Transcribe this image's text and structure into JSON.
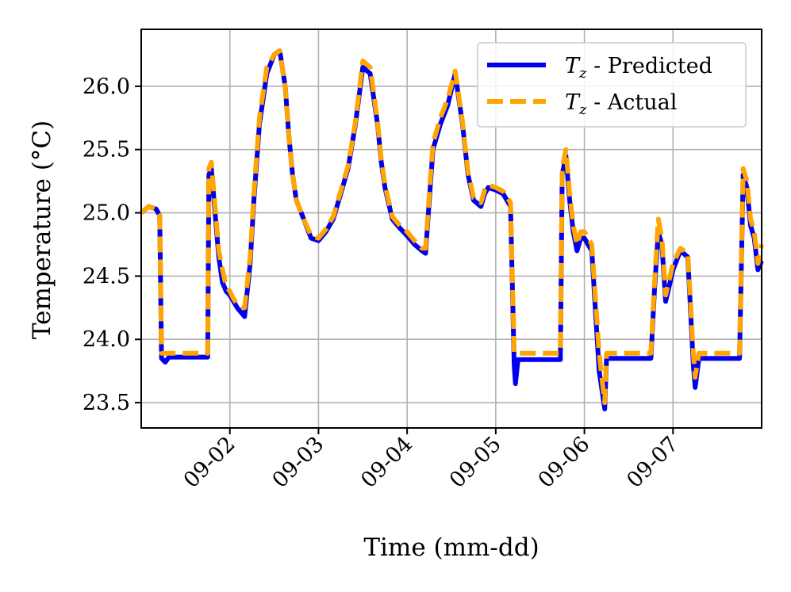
{
  "chart_data": {
    "type": "line",
    "xlabel": "Time (mm-dd)",
    "ylabel": "Temperature (°C)",
    "xlim": [
      "09-01 00:00",
      "09-08 00:00"
    ],
    "ylim": [
      23.3,
      26.45
    ],
    "x_ticks": [
      "09-02",
      "09-03",
      "09-04",
      "09-05",
      "09-06",
      "09-07"
    ],
    "y_ticks": [
      "23.5",
      "24.0",
      "24.5",
      "25.0",
      "25.5",
      "26.0"
    ],
    "grid": true,
    "legend_position": "top-right",
    "x": [
      "09-01 00:00",
      "09-01 02:00",
      "09-01 04:00",
      "09-01 05:00",
      "09-01 05:30",
      "09-01 06:30",
      "09-01 07:30",
      "09-01 09:00",
      "09-01 12:00",
      "09-01 15:00",
      "09-01 18:00",
      "09-01 18:20",
      "09-01 19:00",
      "09-01 20:00",
      "09-01 21:00",
      "09-01 22:00",
      "09-01 23:00",
      "09-02 00:00",
      "09-02 01:00",
      "09-02 02:00",
      "09-02 04:00",
      "09-02 05:30",
      "09-02 06:30",
      "09-02 08:00",
      "09-02 10:00",
      "09-02 12:00",
      "09-02 13:30",
      "09-02 15:00",
      "09-02 16:00",
      "09-02 17:00",
      "09-02 18:00",
      "09-02 20:00",
      "09-02 22:00",
      "09-03 00:00",
      "09-03 02:00",
      "09-03 04:00",
      "09-03 06:00",
      "09-03 08:00",
      "09-03 10:00",
      "09-03 12:00",
      "09-03 14:00",
      "09-03 16:00",
      "09-03 17:00",
      "09-03 18:00",
      "09-03 20:00",
      "09-03 22:00",
      "09-04 00:00",
      "09-04 02:00",
      "09-04 04:00",
      "09-04 05:00",
      "09-04 06:00",
      "09-04 07:00",
      "09-04 09:00",
      "09-04 11:00",
      "09-04 13:00",
      "09-04 15:00",
      "09-04 16:30",
      "09-04 18:00",
      "09-04 20:00",
      "09-04 21:00",
      "09-04 22:00",
      "09-05 00:00",
      "09-05 02:00",
      "09-05 04:00",
      "09-05 05:00",
      "09-05 05:20",
      "09-05 06:00",
      "09-05 07:00",
      "09-05 09:00",
      "09-05 12:00",
      "09-05 15:00",
      "09-05 17:30",
      "09-05 18:00",
      "09-05 19:00",
      "09-05 20:00",
      "09-05 21:00",
      "09-05 22:00",
      "09-05 23:00",
      "09-06 00:00",
      "09-06 01:00",
      "09-06 02:00",
      "09-06 04:00",
      "09-06 05:30",
      "09-06 06:00",
      "09-06 06:30",
      "09-06 07:00",
      "09-06 08:00",
      "09-06 12:00",
      "09-06 16:00",
      "09-06 18:00",
      "09-06 19:00",
      "09-06 20:00",
      "09-06 21:00",
      "09-06 22:00",
      "09-07 00:00",
      "09-07 02:00",
      "09-07 04:00",
      "09-07 05:30",
      "09-07 06:00",
      "09-07 07:00",
      "09-07 07:30",
      "09-07 09:00",
      "09-07 12:00",
      "09-07 15:00",
      "09-07 17:30",
      "09-07 18:00",
      "09-07 19:00",
      "09-07 20:00",
      "09-07 21:00",
      "09-07 22:00",
      "09-07 23:00",
      "09-08 00:00"
    ],
    "series": [
      {
        "name": "Tz - Predicted",
        "color": "#0000ee",
        "style": "solid",
        "values": [
          25.0,
          25.05,
          25.03,
          24.98,
          23.85,
          23.82,
          23.86,
          23.86,
          23.86,
          23.86,
          23.86,
          25.3,
          25.35,
          25.0,
          24.65,
          24.45,
          24.38,
          24.35,
          24.3,
          24.25,
          24.18,
          24.6,
          25.1,
          25.7,
          26.1,
          26.25,
          26.28,
          26.0,
          25.6,
          25.3,
          25.1,
          24.95,
          24.8,
          24.78,
          24.85,
          24.95,
          25.15,
          25.35,
          25.7,
          26.15,
          26.1,
          25.7,
          25.4,
          25.2,
          24.95,
          24.88,
          24.82,
          24.75,
          24.7,
          24.68,
          25.1,
          25.5,
          25.7,
          25.85,
          26.1,
          25.7,
          25.3,
          25.1,
          25.05,
          25.15,
          25.2,
          25.18,
          25.15,
          25.05,
          23.8,
          23.65,
          23.84,
          23.84,
          23.84,
          23.84,
          23.84,
          23.84,
          25.3,
          25.45,
          25.1,
          24.85,
          24.7,
          24.8,
          24.8,
          24.75,
          24.7,
          23.75,
          23.45,
          23.85,
          23.85,
          23.85,
          23.85,
          23.85,
          23.85,
          23.85,
          24.4,
          24.85,
          24.75,
          24.3,
          24.55,
          24.7,
          24.65,
          23.8,
          23.62,
          23.85,
          23.85,
          23.85,
          23.85,
          23.85,
          23.85,
          23.85,
          25.3,
          25.2,
          24.9,
          24.8,
          24.55,
          24.62
        ]
      },
      {
        "name": "Tz - Actual",
        "color": "#ffa500",
        "style": "dashed",
        "values": [
          25.0,
          25.05,
          25.03,
          24.98,
          23.89,
          23.89,
          23.89,
          23.89,
          23.89,
          23.89,
          23.89,
          25.35,
          25.4,
          25.05,
          24.7,
          24.55,
          24.42,
          24.38,
          24.32,
          24.28,
          24.25,
          24.65,
          25.15,
          25.75,
          26.15,
          26.25,
          26.28,
          26.0,
          25.6,
          25.3,
          25.1,
          24.95,
          24.82,
          24.8,
          24.87,
          24.97,
          25.17,
          25.37,
          25.72,
          26.2,
          26.15,
          25.72,
          25.42,
          25.22,
          24.97,
          24.9,
          24.85,
          24.78,
          24.72,
          24.72,
          25.15,
          25.55,
          25.75,
          25.9,
          26.12,
          25.72,
          25.32,
          25.12,
          25.08,
          25.18,
          25.22,
          25.2,
          25.17,
          25.08,
          23.89,
          23.89,
          23.89,
          23.89,
          23.89,
          23.89,
          23.89,
          23.89,
          25.35,
          25.5,
          25.15,
          24.9,
          24.75,
          24.85,
          24.85,
          24.8,
          24.75,
          23.89,
          23.5,
          23.89,
          23.89,
          23.89,
          23.89,
          23.89,
          23.89,
          23.89,
          24.45,
          24.95,
          24.8,
          24.35,
          24.6,
          24.72,
          24.68,
          23.89,
          23.7,
          23.89,
          23.89,
          23.89,
          23.89,
          23.89,
          23.89,
          23.89,
          25.35,
          25.25,
          24.95,
          24.85,
          24.6,
          24.75
        ]
      }
    ]
  },
  "legend": {
    "items": [
      {
        "symbol": "T",
        "subscript": "z",
        "label": " - Predicted"
      },
      {
        "symbol": "T",
        "subscript": "z",
        "label": " - Actual"
      }
    ]
  }
}
